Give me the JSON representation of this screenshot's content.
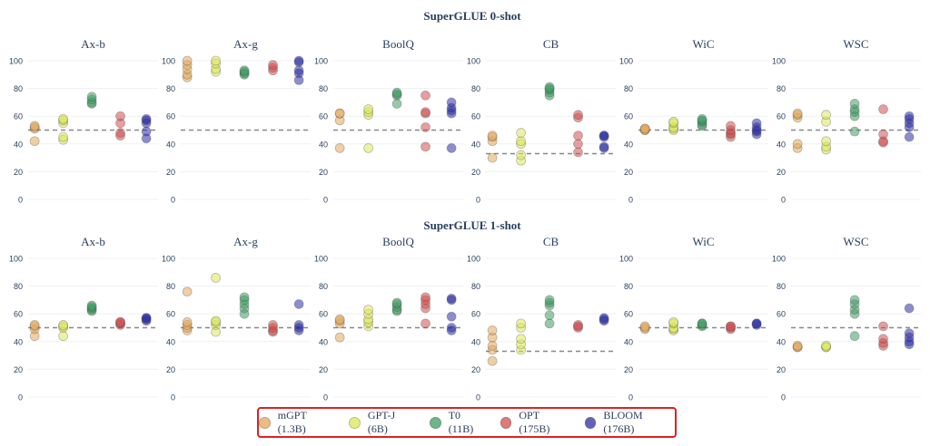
{
  "colors": {
    "mGPT": "#e3a85a",
    "GPT-J": "#dbe85a",
    "T0": "#3f9c63",
    "OPT": "#d24e4e",
    "BLOOM": "#2b2fa6",
    "axis": "#2a3f5f",
    "grid": "#eef0f4",
    "ref": "#888888",
    "highlight": "#e02020"
  },
  "chart_data": [
    {
      "type": "scatter",
      "title": "SuperGLUE 0-shot",
      "ylim": [
        0,
        100
      ],
      "yticks": [
        0,
        20,
        40,
        60,
        80,
        100
      ],
      "series_names": [
        "mGPT (1.3B)",
        "GPT-J (6B)",
        "T0 (11B)",
        "OPT (175B)",
        "BLOOM (176B)"
      ],
      "panels": [
        {
          "name": "Ax-b",
          "baseline": 50,
          "points": {
            "mGPT": [
              42,
              51,
              52,
              53
            ],
            "GPT-J": [
              43,
              45,
              55,
              57,
              58
            ],
            "T0": [
              69,
              70,
              72,
              74
            ],
            "OPT": [
              46,
              48,
              55,
              60
            ],
            "BLOOM": [
              44,
              49,
              55,
              57,
              58
            ]
          }
        },
        {
          "name": "Ax-g",
          "baseline": 50,
          "points": {
            "mGPT": [
              88,
              90,
              94,
              97,
              100
            ],
            "GPT-J": [
              92,
              94,
              98,
              100
            ],
            "T0": [
              90,
              91,
              92,
              93
            ],
            "OPT": [
              93,
              95,
              97
            ],
            "BLOOM": [
              86,
              91,
              93,
              99,
              100
            ]
          }
        },
        {
          "name": "BoolQ",
          "baseline": 50,
          "points": {
            "mGPT": [
              37,
              57,
              62,
              62
            ],
            "GPT-J": [
              37,
              61,
              63,
              65
            ],
            "T0": [
              69,
              75,
              76,
              77
            ],
            "OPT": [
              38,
              52,
              62,
              63,
              75
            ],
            "BLOOM": [
              37,
              62,
              64,
              66,
              70
            ]
          }
        },
        {
          "name": "CB",
          "baseline": 33,
          "points": {
            "mGPT": [
              30,
              42,
              45,
              46
            ],
            "GPT-J": [
              28,
              32,
              40,
              42,
              48
            ],
            "T0": [
              75,
              77,
              79,
              80,
              81
            ],
            "OPT": [
              34,
              40,
              46,
              59,
              61
            ],
            "BLOOM": [
              37,
              38,
              45,
              46,
              46
            ]
          }
        },
        {
          "name": "WiC",
          "baseline": 50,
          "points": {
            "mGPT": [
              50,
              50,
              51,
              51
            ],
            "GPT-J": [
              50,
              51,
              52,
              55,
              56
            ],
            "T0": [
              53,
              54,
              56,
              57,
              58
            ],
            "OPT": [
              45,
              47,
              48,
              50,
              53
            ],
            "BLOOM": [
              47,
              49,
              50,
              52,
              55
            ]
          }
        },
        {
          "name": "WSC",
          "baseline": 50,
          "points": {
            "mGPT": [
              37,
              40,
              59,
              61,
              62
            ],
            "GPT-J": [
              36,
              38,
              42,
              56,
              61
            ],
            "T0": [
              49,
              60,
              63,
              65,
              69
            ],
            "OPT": [
              41,
              42,
              47,
              65
            ],
            "BLOOM": [
              45,
              52,
              55,
              58,
              60
            ]
          }
        }
      ]
    },
    {
      "type": "scatter",
      "title": "SuperGLUE 1-shot",
      "ylim": [
        0,
        100
      ],
      "yticks": [
        0,
        20,
        40,
        60,
        80,
        100
      ],
      "series_names": [
        "mGPT (1.3B)",
        "GPT-J (6B)",
        "T0 (11B)",
        "OPT (175B)",
        "BLOOM (176B)"
      ],
      "panels": [
        {
          "name": "Ax-b",
          "baseline": 50,
          "points": {
            "mGPT": [
              44,
              49,
              51,
              52
            ],
            "GPT-J": [
              44,
              50,
              51,
              52
            ],
            "T0": [
              62,
              63,
              64,
              65,
              66
            ],
            "OPT": [
              52,
              53,
              54,
              54
            ],
            "BLOOM": [
              55,
              56,
              57,
              57
            ]
          }
        },
        {
          "name": "Ax-g",
          "baseline": 50,
          "points": {
            "mGPT": [
              48,
              50,
              52,
              54,
              76
            ],
            "GPT-J": [
              47,
              52,
              54,
              55,
              86
            ],
            "T0": [
              60,
              64,
              67,
              70,
              72
            ],
            "OPT": [
              47,
              48,
              50,
              52
            ],
            "BLOOM": [
              48,
              50,
              52,
              67
            ]
          }
        },
        {
          "name": "BoolQ",
          "baseline": 50,
          "points": {
            "mGPT": [
              43,
              53,
              55,
              56
            ],
            "GPT-J": [
              51,
              54,
              56,
              60,
              63
            ],
            "T0": [
              62,
              63,
              65,
              67,
              68
            ],
            "OPT": [
              53,
              64,
              67,
              70,
              72
            ],
            "BLOOM": [
              48,
              50,
              58,
              70,
              71
            ]
          }
        },
        {
          "name": "CB",
          "baseline": 33,
          "points": {
            "mGPT": [
              26,
              34,
              37,
              43,
              48
            ],
            "GPT-J": [
              34,
              38,
              42,
              50,
              53
            ],
            "T0": [
              53,
              59,
              66,
              68,
              70
            ],
            "OPT": [
              50,
              51,
              52
            ],
            "BLOOM": [
              55,
              56,
              57
            ]
          }
        },
        {
          "name": "WiC",
          "baseline": 50,
          "points": {
            "mGPT": [
              49,
              50,
              51
            ],
            "GPT-J": [
              48,
              49,
              50,
              53,
              54
            ],
            "T0": [
              51,
              52,
              53,
              53
            ],
            "OPT": [
              49,
              50,
              51,
              51
            ],
            "BLOOM": [
              52,
              53,
              53
            ]
          }
        },
        {
          "name": "WSC",
          "baseline": 50,
          "points": {
            "mGPT": [
              36,
              36,
              37
            ],
            "GPT-J": [
              36,
              36,
              37
            ],
            "T0": [
              44,
              60,
              63,
              67,
              70
            ],
            "OPT": [
              37,
              39,
              42,
              51
            ],
            "BLOOM": [
              38,
              40,
              43,
              46,
              64
            ]
          }
        }
      ]
    }
  ]
}
